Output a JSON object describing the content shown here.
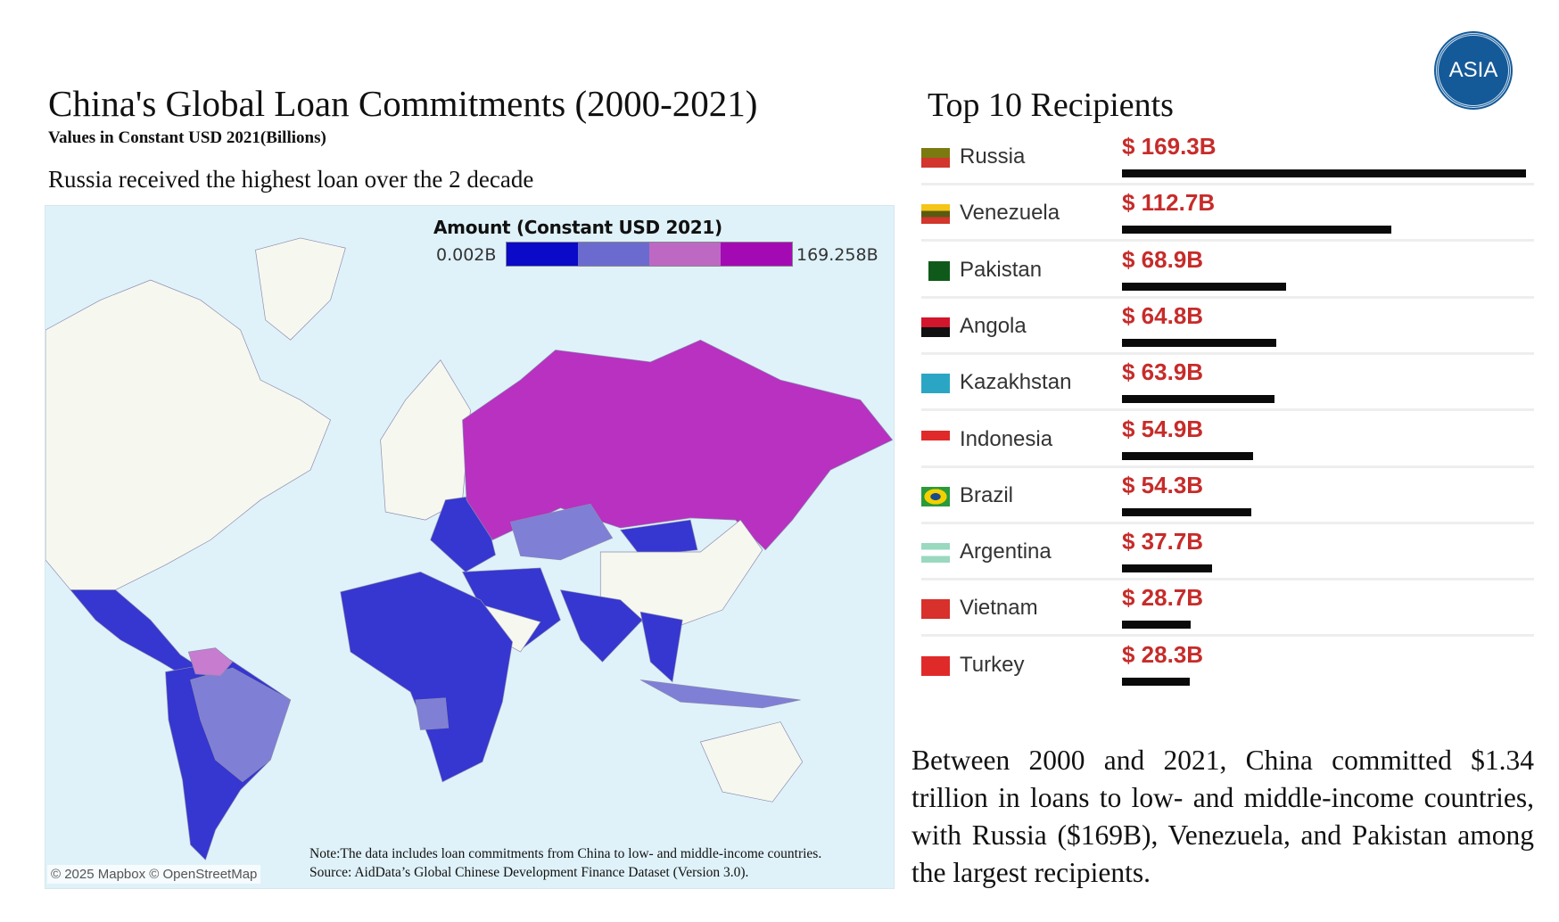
{
  "header": {
    "title": "China's Global Loan Commitments (2000-2021)",
    "subtitle": "Values in Constant USD 2021(Billions)",
    "insight": "Russia received the highest loan over the 2 decade"
  },
  "map": {
    "legend": {
      "title": "Amount (Constant USD 2021)",
      "min": "0.002B",
      "max": "169.258B",
      "colors": [
        "#0a0ac8",
        "#6b6bcf",
        "#bd68c3",
        "#a40ab4"
      ]
    },
    "attribution": "© 2025 Mapbox © OpenStreetMap",
    "note": "Note:The data includes loan commitments from China to low- and middle-income countries.",
    "source": "Source:  AidData’s Global Chinese Development Finance Dataset (Version 3.0).",
    "colors": {
      "water": "#dff2f9",
      "no_data": "#f6f7ef",
      "russia": "#b831c0",
      "mid": "#7f7fd6",
      "low": "#3636d0",
      "venezuela": "#c77ccf"
    }
  },
  "logo": {
    "text": "ASIA"
  },
  "chart_data": {
    "type": "bar",
    "title": "Top 10 Recipients",
    "categories": [
      "Russia",
      "Venezuela",
      "Pakistan",
      "Angola",
      "Kazakhstan",
      "Indonesia",
      "Brazil",
      "Argentina",
      "Vietnam",
      "Turkey"
    ],
    "values": [
      169.3,
      112.7,
      68.9,
      64.8,
      63.9,
      54.9,
      54.3,
      37.7,
      28.7,
      28.3
    ],
    "labels": [
      "$ 169.3B",
      "$ 112.7B",
      "$ 68.9B",
      "$ 64.8B",
      "$ 63.9B",
      "$ 54.9B",
      "$ 54.3B",
      "$ 37.7B",
      "$ 28.7B",
      "$ 28.3B"
    ],
    "unit": "Billion USD",
    "bar_color": "#0a0a0a",
    "label_color": "#c62c2a"
  },
  "summary": "Between 2000 and 2021, China committed $1.34 trillion in loans to low- and middle-income countries, with Russia ($169B), Venezuela, and Pakistan among the largest recipients."
}
